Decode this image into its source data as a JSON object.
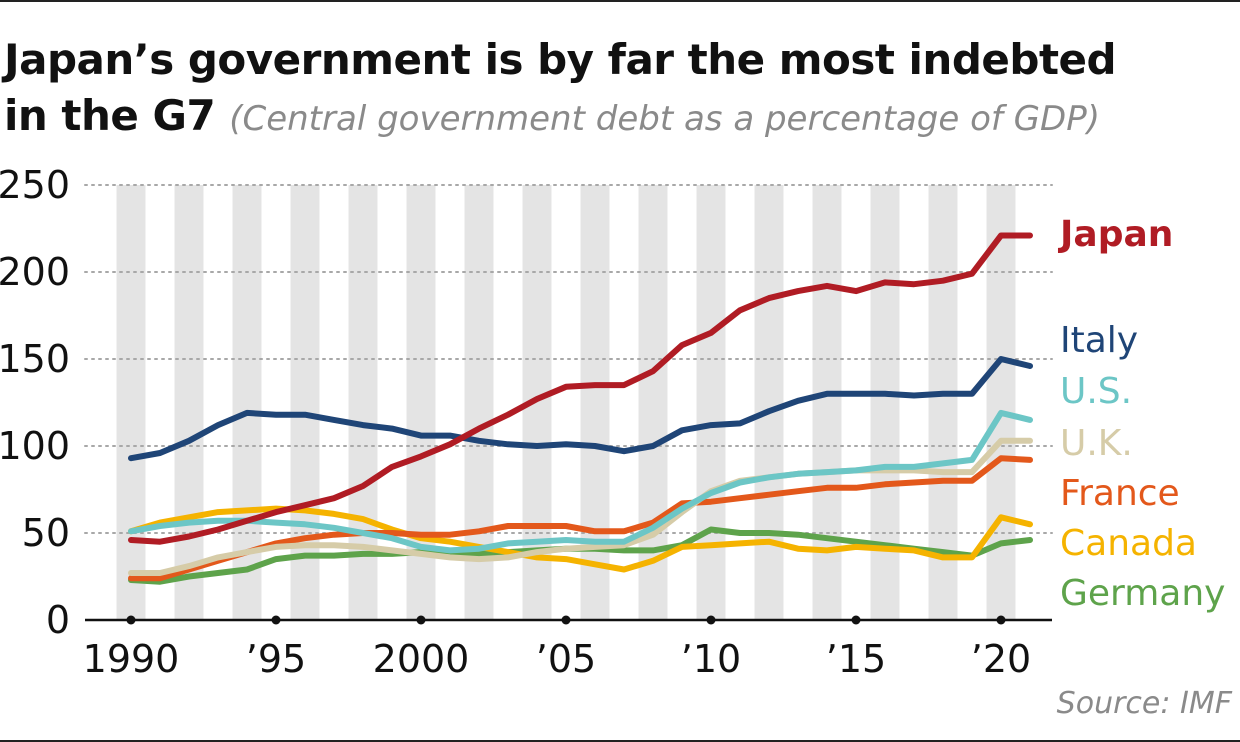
{
  "header": {
    "title_line1": "Japan’s government is by far the most indebted",
    "title_line2": "in the G7",
    "subtitle": "(Central government debt as a percentage of GDP)"
  },
  "source": "Source: IMF",
  "chart_data": {
    "type": "line",
    "title": "Japan’s government is by far the most indebted in the G7",
    "subtitle": "(Central government debt as a percentage of GDP)",
    "ylim": [
      0,
      250
    ],
    "yticks": [
      0,
      50,
      100,
      150,
      200,
      250
    ],
    "xlim": [
      1990,
      2021
    ],
    "xticks": [
      {
        "value": 1990,
        "label": "1990"
      },
      {
        "value": 1995,
        "label": "’95"
      },
      {
        "value": 2000,
        "label": "2000"
      },
      {
        "value": 2005,
        "label": "’05"
      },
      {
        "value": 2010,
        "label": "’10"
      },
      {
        "value": 2015,
        "label": "’15"
      },
      {
        "value": 2020,
        "label": "’20"
      }
    ],
    "grid": "horizontal dotted",
    "legend": "right, labels at series ends",
    "x": [
      1990,
      1991,
      1992,
      1993,
      1994,
      1995,
      1996,
      1997,
      1998,
      1999,
      2000,
      2001,
      2002,
      2003,
      2004,
      2005,
      2006,
      2007,
      2008,
      2009,
      2010,
      2011,
      2012,
      2013,
      2014,
      2015,
      2016,
      2017,
      2018,
      2019,
      2020,
      2021
    ],
    "series": [
      {
        "name": "Japan",
        "color": "#b01c24",
        "bold": true,
        "values": [
          46,
          45,
          48,
          52,
          57,
          62,
          66,
          70,
          77,
          88,
          94,
          101,
          110,
          118,
          127,
          134,
          135,
          135,
          143,
          158,
          165,
          178,
          185,
          189,
          192,
          189,
          194,
          193,
          195,
          199,
          221,
          221
        ]
      },
      {
        "name": "Italy",
        "color": "#1f4577",
        "values": [
          93,
          96,
          103,
          112,
          119,
          118,
          118,
          115,
          112,
          110,
          106,
          106,
          103,
          101,
          100,
          101,
          100,
          97,
          100,
          109,
          112,
          113,
          120,
          126,
          130,
          130,
          130,
          129,
          130,
          130,
          150,
          146
        ]
      },
      {
        "name": "U.S.",
        "color": "#6cc6c6",
        "values": [
          51,
          54,
          56,
          57,
          57,
          56,
          55,
          53,
          50,
          47,
          42,
          40,
          41,
          44,
          45,
          46,
          45,
          45,
          53,
          64,
          73,
          79,
          82,
          84,
          85,
          86,
          88,
          88,
          90,
          92,
          119,
          115
        ]
      },
      {
        "name": "U.K.",
        "color": "#d6cca8",
        "values": [
          27,
          27,
          31,
          36,
          39,
          42,
          43,
          43,
          42,
          40,
          38,
          36,
          35,
          36,
          39,
          41,
          42,
          43,
          49,
          62,
          74,
          80,
          82,
          84,
          85,
          86,
          86,
          86,
          85,
          85,
          103,
          103
        ]
      },
      {
        "name": "France",
        "color": "#e3581b",
        "values": [
          24,
          24,
          29,
          34,
          39,
          44,
          47,
          49,
          50,
          50,
          49,
          49,
          51,
          54,
          54,
          54,
          51,
          51,
          56,
          67,
          68,
          70,
          72,
          74,
          76,
          76,
          78,
          79,
          80,
          80,
          93,
          92
        ]
      },
      {
        "name": "Canada",
        "color": "#f5b300",
        "values": [
          51,
          56,
          59,
          62,
          63,
          64,
          63,
          61,
          58,
          52,
          47,
          45,
          42,
          39,
          36,
          35,
          32,
          29,
          34,
          42,
          43,
          44,
          45,
          41,
          40,
          42,
          41,
          40,
          36,
          36,
          59,
          55
        ]
      },
      {
        "name": "Germany",
        "color": "#5ea34b",
        "values": [
          23,
          22,
          25,
          27,
          29,
          35,
          37,
          37,
          38,
          38,
          39,
          38,
          38,
          39,
          40,
          41,
          41,
          40,
          40,
          43,
          52,
          50,
          50,
          49,
          47,
          45,
          43,
          41,
          39,
          37,
          44,
          46
        ]
      }
    ]
  }
}
